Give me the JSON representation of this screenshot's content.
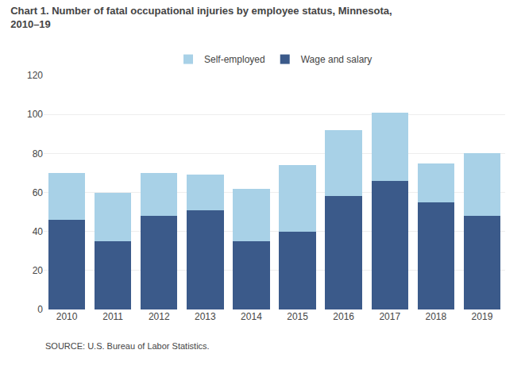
{
  "chart_data": {
    "type": "bar",
    "stacked": true,
    "title": "Chart 1. Number of fatal occupational injuries by employee status, Minnesota,\n2010–19",
    "categories": [
      "2010",
      "2011",
      "2012",
      "2013",
      "2014",
      "2015",
      "2016",
      "2017",
      "2018",
      "2019"
    ],
    "series": [
      {
        "name": "Wage and salary",
        "color": "#3B5A8A",
        "values": [
          46,
          35,
          48,
          51,
          35,
          40,
          58,
          66,
          55,
          48
        ]
      },
      {
        "name": "Self-employed",
        "color": "#A8D1E7",
        "values": [
          24,
          25,
          22,
          18,
          27,
          34,
          34,
          35,
          20,
          32
        ]
      }
    ],
    "ylim": [
      0,
      120
    ],
    "yticks": [
      0,
      20,
      40,
      60,
      80,
      100,
      120
    ],
    "grid": true,
    "legend": "top",
    "annotations": [
      "SOURCE: U.S. Bureau of Labor Statistics."
    ]
  }
}
